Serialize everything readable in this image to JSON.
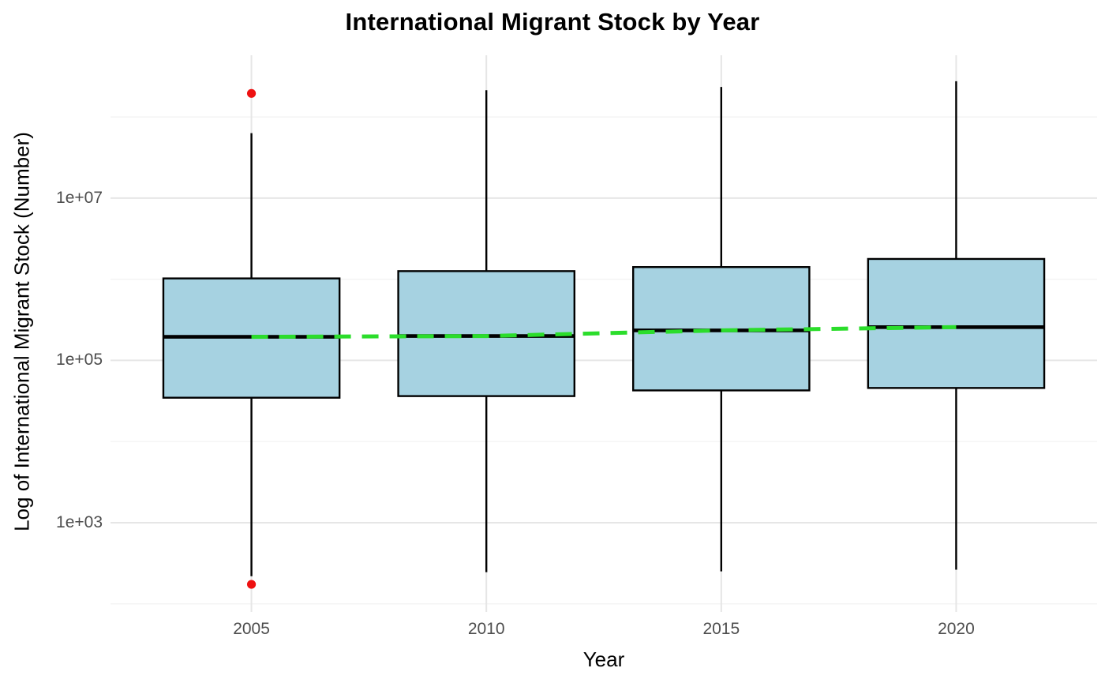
{
  "title": "International Migrant Stock by Year",
  "x_axis": {
    "label": "Year",
    "ticks": [
      "2005",
      "2010",
      "2015",
      "2020"
    ]
  },
  "y_axis": {
    "label": "Log of International Migrant Stock (Number)",
    "ticks": [
      "1e+03",
      "1e+05",
      "1e+07"
    ],
    "tick_log10": [
      3,
      5,
      7
    ],
    "minor_log10": [
      2,
      4,
      6,
      8
    ]
  },
  "colors": {
    "background": "#FFFFFF",
    "box_fill": "#A6D2E1",
    "box_stroke": "#000000",
    "median_stroke": "#000000",
    "outlier_red": "#EE1111",
    "trend_green": "#2BDD2B",
    "grid_major": "#E6E6E6",
    "grid_minor": "#F2F2F2",
    "tick_text": "#4D4D4D",
    "axis_text": "#000000"
  },
  "chart_data": {
    "type": "boxplot",
    "title": "International Migrant Stock by Year",
    "xlabel": "Year",
    "ylabel": "Log of International Migrant Stock (Number)",
    "categories": [
      "2005",
      "2010",
      "2015",
      "2020"
    ],
    "y_scale": "log10",
    "ylim_log10": [
      1.9,
      8.76
    ],
    "y_breaks_labels": [
      "1e+03",
      "1e+05",
      "1e+07"
    ],
    "grid": true,
    "legend": false,
    "series": [
      {
        "year": "2005",
        "stats_log10": {
          "whisker_low": 2.34,
          "q1": 4.54,
          "median": 5.29,
          "q3": 6.01,
          "whisker_high": 7.8
        },
        "stats_approx": {
          "whisker_low": 220,
          "q1": 35000,
          "median": 195000,
          "q3": 1030000,
          "whisker_high": 63000000
        },
        "outliers_log10": [
          8.29,
          2.24
        ],
        "outliers_approx": [
          195000000,
          175
        ]
      },
      {
        "year": "2010",
        "stats_log10": {
          "whisker_low": 2.39,
          "q1": 4.56,
          "median": 5.3,
          "q3": 6.1,
          "whisker_high": 8.33
        },
        "stats_approx": {
          "whisker_low": 245,
          "q1": 36000,
          "median": 200000,
          "q3": 1250000,
          "whisker_high": 215000000
        },
        "outliers_log10": [],
        "outliers_approx": []
      },
      {
        "year": "2015",
        "stats_log10": {
          "whisker_low": 2.4,
          "q1": 4.63,
          "median": 5.37,
          "q3": 6.15,
          "whisker_high": 8.37
        },
        "stats_approx": {
          "whisker_low": 250,
          "q1": 43000,
          "median": 230000,
          "q3": 1400000,
          "whisker_high": 235000000
        },
        "outliers_log10": [],
        "outliers_approx": []
      },
      {
        "year": "2020",
        "stats_log10": {
          "whisker_low": 2.42,
          "q1": 4.66,
          "median": 5.41,
          "q3": 6.25,
          "whisker_high": 8.44
        },
        "stats_approx": {
          "whisker_low": 265,
          "q1": 46000,
          "median": 260000,
          "q3": 1800000,
          "whisker_high": 275000000
        },
        "outliers_log10": [],
        "outliers_approx": []
      }
    ],
    "trend_line": {
      "style": "dashed",
      "color": "green",
      "through": "medians"
    }
  }
}
